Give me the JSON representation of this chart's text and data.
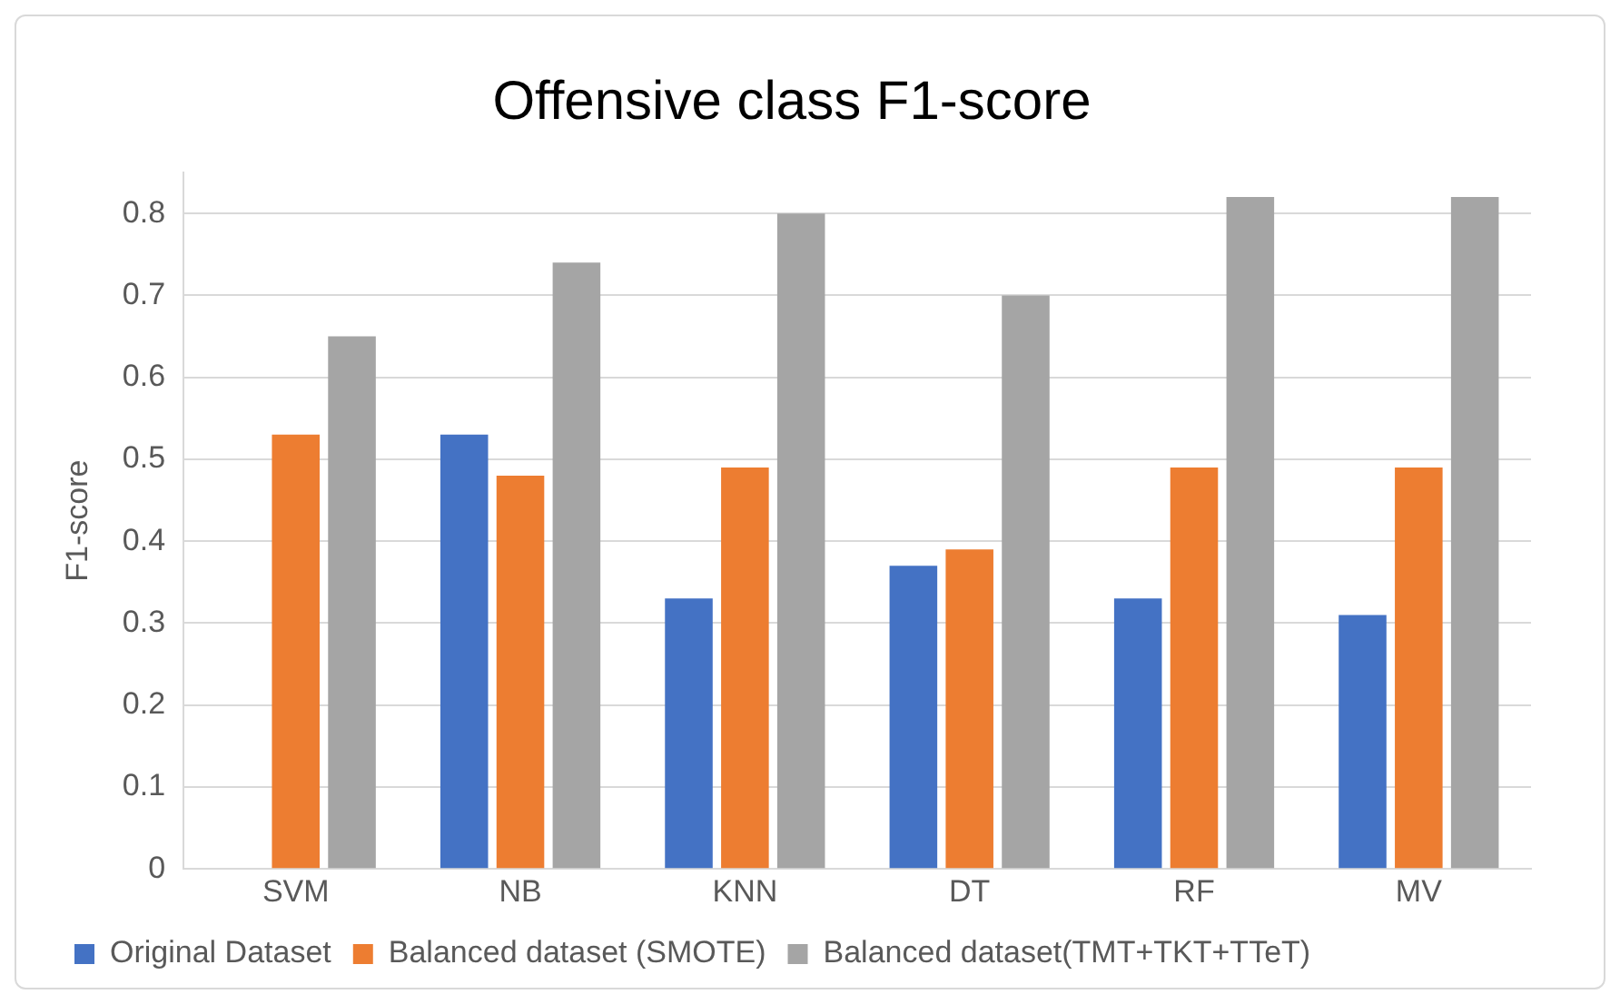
{
  "chart_data": {
    "type": "bar",
    "title": "Offensive class F1-score",
    "ylabel": "F1-score",
    "categories": [
      "SVM",
      "NB",
      "KNN",
      "DT",
      "RF",
      "MV"
    ],
    "series": [
      {
        "name": "Original Dataset",
        "color": "#4472c4",
        "values": [
          null,
          0.53,
          0.33,
          0.37,
          0.33,
          0.31
        ]
      },
      {
        "name": "Balanced dataset (SMOTE)",
        "color": "#ed7d31",
        "values": [
          0.53,
          0.48,
          0.49,
          0.39,
          0.49,
          0.49
        ]
      },
      {
        "name": "Balanced dataset(TMT+TKT+TTeT)",
        "color": "#a5a5a5",
        "values": [
          0.65,
          0.74,
          0.8,
          0.7,
          0.82,
          0.82
        ]
      }
    ],
    "ylim": [
      0,
      0.85
    ],
    "yticks": [
      0,
      0.1,
      0.2,
      0.3,
      0.4,
      0.5,
      0.6,
      0.7,
      0.8
    ],
    "grid": "y",
    "legend": "bottom"
  }
}
